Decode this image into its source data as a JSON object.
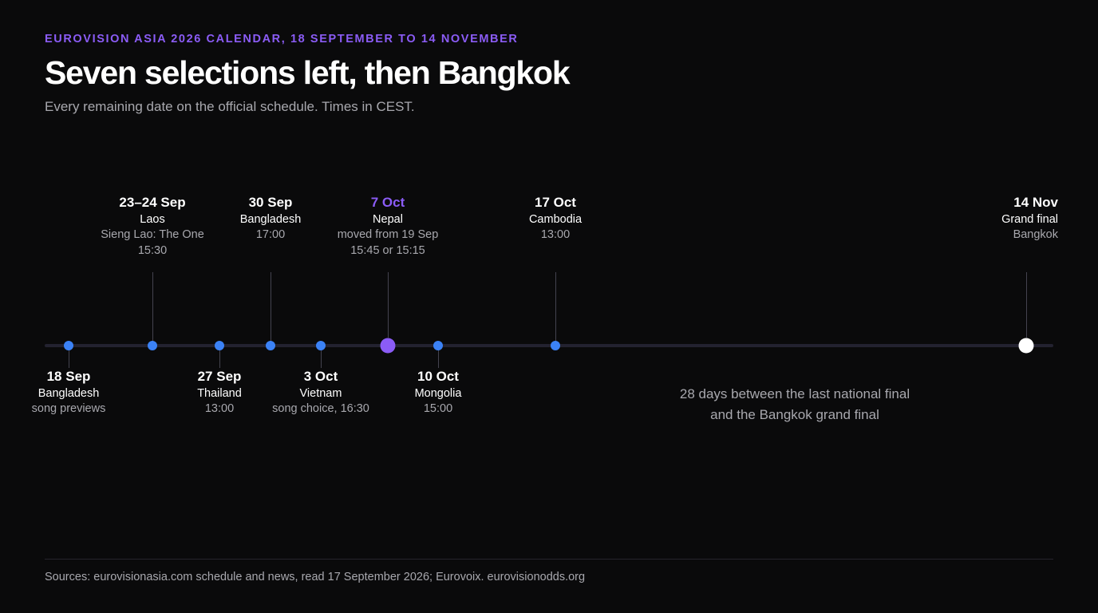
{
  "header": {
    "eyebrow": "EUROVISION ASIA 2026 CALENDAR, 18 SEPTEMBER TO 14 NOVEMBER",
    "title": "Seven selections left, then Bangkok",
    "subtitle": "Every remaining date on the official schedule. Times in CEST."
  },
  "timeline": {
    "events": [
      {
        "date": "18 Sep",
        "country": "Bangladesh",
        "details": [
          "song previews"
        ]
      },
      {
        "date": "23–24 Sep",
        "country": "Laos",
        "details": [
          "Sieng Lao: The One",
          "15:30"
        ]
      },
      {
        "date": "27 Sep",
        "country": "Thailand",
        "details": [
          "13:00"
        ]
      },
      {
        "date": "30 Sep",
        "country": "Bangladesh",
        "details": [
          "17:00"
        ]
      },
      {
        "date": "3 Oct",
        "country": "Vietnam",
        "details": [
          "song choice, 16:30"
        ]
      },
      {
        "date": "7 Oct",
        "country": "Nepal",
        "details": [
          "moved from 19 Sep",
          "15:45 or 15:15"
        ]
      },
      {
        "date": "10 Oct",
        "country": "Mongolia",
        "details": [
          "15:00"
        ]
      },
      {
        "date": "17 Oct",
        "country": "Cambodia",
        "details": [
          "13:00"
        ]
      },
      {
        "date": "14 Nov",
        "country": "Grand final",
        "details": [
          "Bangkok"
        ]
      }
    ],
    "gap_note": [
      "28 days between the last national final",
      "and the Bangkok grand final"
    ]
  },
  "colors": {
    "accent": "#8b5cf6",
    "event_dot": "#3b82f6",
    "final_dot": "#ffffff",
    "background": "#0a0a0b"
  },
  "footer": {
    "sources": "Sources: eurovisionasia.com schedule and news, read 17 September 2026; Eurovoix. eurovisionodds.org"
  }
}
